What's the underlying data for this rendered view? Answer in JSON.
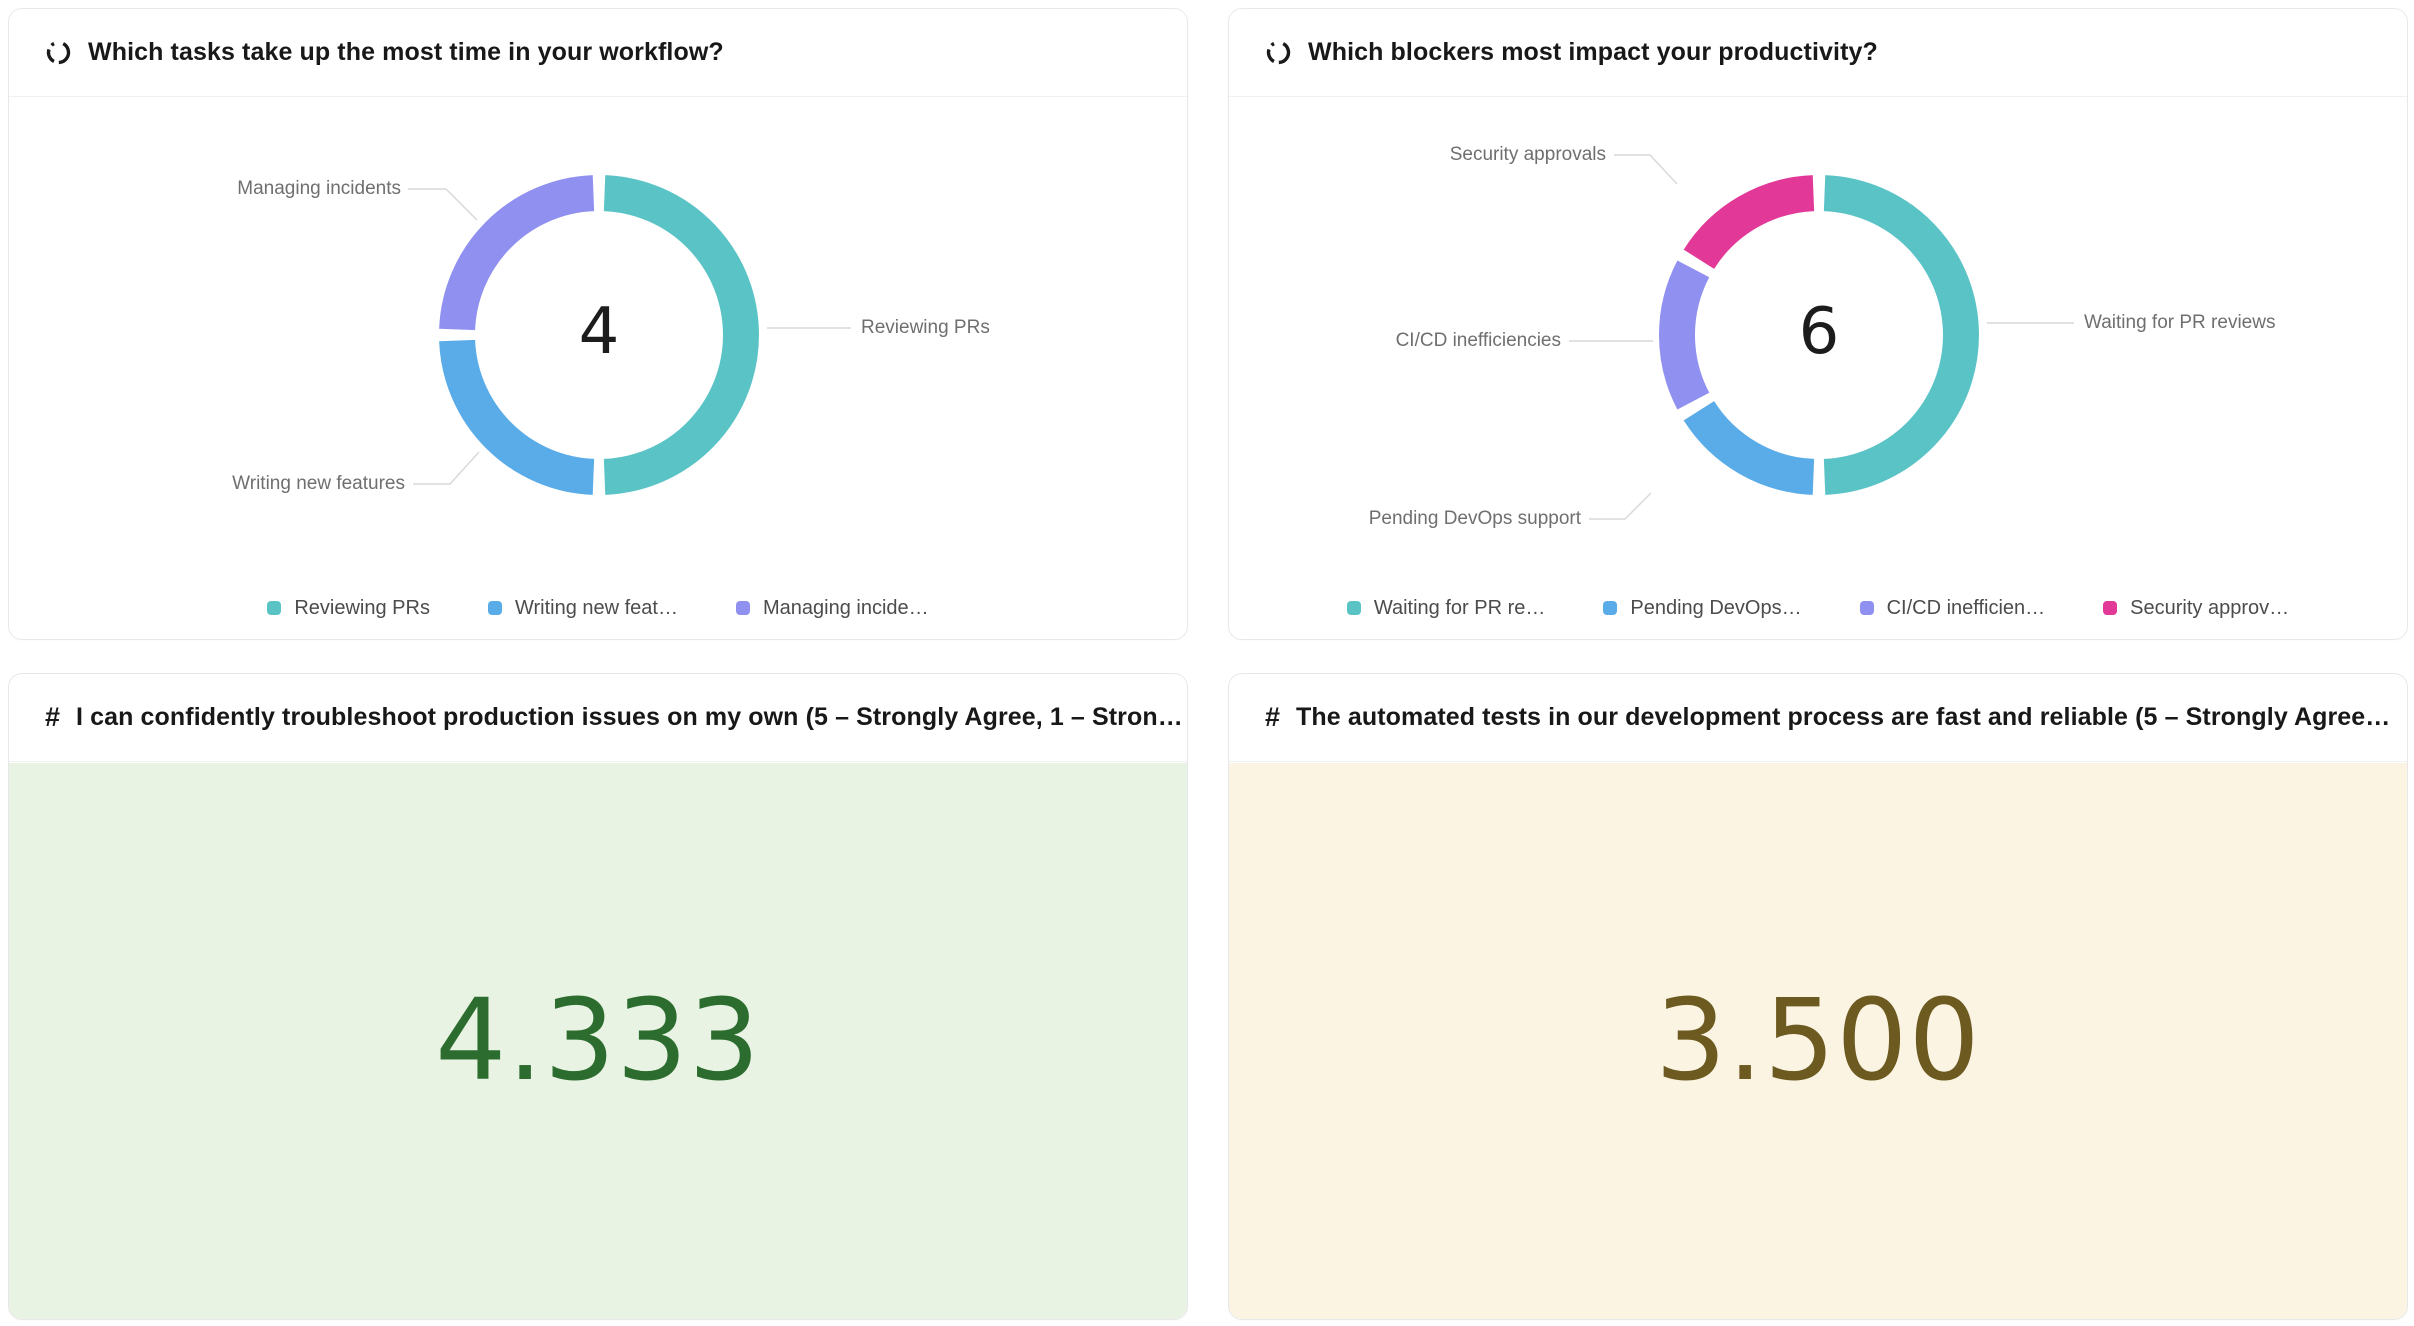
{
  "cards": [
    {
      "type": "donut",
      "icon": "donut-chart-icon",
      "title": "Which tasks take up the most time in your workflow?",
      "center_total": "4",
      "segments": [
        {
          "label": "Reviewing PRs",
          "legend_label": "Reviewing PRs",
          "value": 2,
          "color": "#5ac3c6"
        },
        {
          "label": "Writing new features",
          "legend_label": "Writing new feat…",
          "value": 1,
          "color": "#5aace8"
        },
        {
          "label": "Managing incidents",
          "legend_label": "Managing incide…",
          "value": 1,
          "color": "#9090f0"
        }
      ]
    },
    {
      "type": "donut",
      "icon": "donut-chart-icon",
      "title": "Which blockers most impact your productivity?",
      "center_total": "6",
      "segments": [
        {
          "label": "Waiting for PR reviews",
          "legend_label": "Waiting for PR re…",
          "value": 3,
          "color": "#5ac3c6"
        },
        {
          "label": "Pending DevOps support",
          "legend_label": "Pending DevOps…",
          "value": 1,
          "color": "#5aace8"
        },
        {
          "label": "CI/CD inefficiencies",
          "legend_label": "CI/CD inefficien…",
          "value": 1,
          "color": "#9090f0"
        },
        {
          "label": "Security approvals",
          "legend_label": "Security approv…",
          "value": 1,
          "color": "#e23897"
        }
      ]
    },
    {
      "type": "number",
      "icon": "hash-icon",
      "hash_glyph": "#",
      "title": "I can confidently troubleshoot production issues on my own (5 – Strongly Agree, 1 – Stron…",
      "value": "4.333",
      "bg": "#e8f3e3",
      "fg": "#2c6d2f"
    },
    {
      "type": "number",
      "icon": "hash-icon",
      "hash_glyph": "#",
      "title": "The automated tests in our development process are fast and reliable (5 – Strongly Agree…",
      "value": "3.500",
      "bg": "#fbf4e3",
      "fg": "#6c5a20"
    }
  ],
  "chart_data": [
    {
      "type": "pie",
      "subtype": "donut",
      "title": "Which tasks take up the most time in your workflow?",
      "labels": [
        "Reviewing PRs",
        "Writing new features",
        "Managing incidents"
      ],
      "values": [
        2,
        1,
        1
      ],
      "total_shown_in_center": 4,
      "colors": [
        "#5ac3c6",
        "#5aace8",
        "#9090f0"
      ],
      "legend_position": "bottom",
      "legend_labels_shown": [
        "Reviewing PRs",
        "Writing new feat…",
        "Managing incide…"
      ]
    },
    {
      "type": "pie",
      "subtype": "donut",
      "title": "Which blockers most impact your productivity?",
      "labels": [
        "Waiting for PR reviews",
        "Pending DevOps support",
        "CI/CD inefficiencies",
        "Security approvals"
      ],
      "values": [
        3,
        1,
        1,
        1
      ],
      "total_shown_in_center": 6,
      "colors": [
        "#5ac3c6",
        "#5aace8",
        "#9090f0",
        "#e23897"
      ],
      "legend_position": "bottom",
      "legend_labels_shown": [
        "Waiting for PR re…",
        "Pending DevOps…",
        "CI/CD inefficien…",
        "Security approv…"
      ]
    },
    {
      "type": "number",
      "title": "I can confidently troubleshoot production issues on my own (5 – Strongly Agree, 1 – Stron…",
      "value": 4.333
    },
    {
      "type": "number",
      "title": "The automated tests in our development process are fast and reliable (5 – Strongly Agree…",
      "value": 3.5
    }
  ]
}
